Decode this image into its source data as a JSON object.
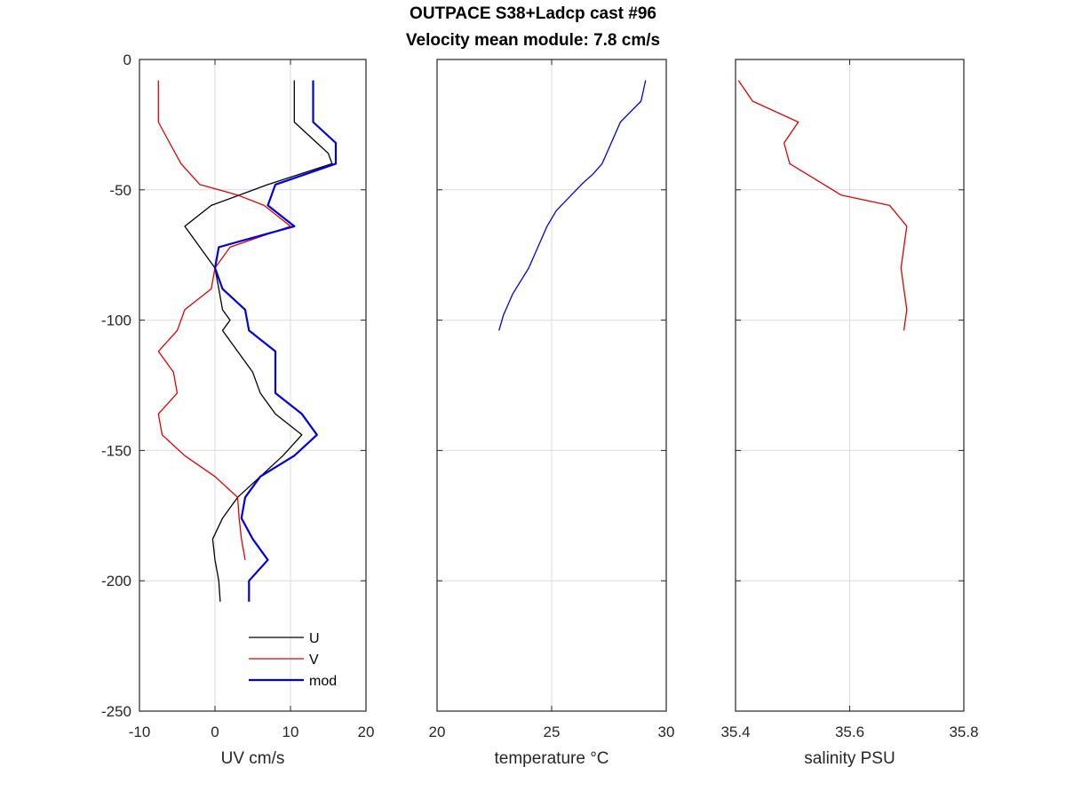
{
  "title": {
    "line1": "OUTPACE S38+Ladcp cast #96",
    "line2": "Velocity mean module:  7.8 cm/s"
  },
  "chart_data": [
    {
      "type": "line",
      "xlabel": "UV cm/s",
      "ylabel": "",
      "xlim": [
        -10,
        20
      ],
      "ylim": [
        -250,
        0
      ],
      "xticks": [
        -10,
        0,
        10,
        20
      ],
      "yticks": [
        -250,
        -200,
        -150,
        -100,
        -50,
        0
      ],
      "grid": true,
      "legend": "bottom-right",
      "series": [
        {
          "name": "U",
          "color": "#000000",
          "points": [
            [
              10.5,
              -8
            ],
            [
              10.5,
              -24
            ],
            [
              13.5,
              -32
            ],
            [
              15,
              -36
            ],
            [
              15.5,
              -40
            ],
            [
              7,
              -48
            ],
            [
              -0.5,
              -56
            ],
            [
              -4,
              -64
            ],
            [
              -2,
              -72
            ],
            [
              0,
              -80
            ],
            [
              0.5,
              -88
            ],
            [
              1,
              -96
            ],
            [
              2,
              -100
            ],
            [
              1,
              -104
            ],
            [
              3,
              -112
            ],
            [
              5,
              -120
            ],
            [
              6,
              -128
            ],
            [
              8,
              -136
            ],
            [
              11.5,
              -144
            ],
            [
              9,
              -152
            ],
            [
              6,
              -160
            ],
            [
              3,
              -168
            ],
            [
              1,
              -176
            ],
            [
              -0.3,
              -184
            ],
            [
              0,
              -192
            ],
            [
              0.5,
              -200
            ],
            [
              0.7,
              -208
            ]
          ]
        },
        {
          "name": "V",
          "color": "#e00000",
          "points": [
            [
              -7.5,
              -8
            ],
            [
              -7.5,
              -24
            ],
            [
              -6,
              -32
            ],
            [
              -4.5,
              -40
            ],
            [
              -2,
              -48
            ],
            [
              3,
              -52
            ],
            [
              6.5,
              -56
            ],
            [
              10,
              -64
            ],
            [
              2,
              -72
            ],
            [
              0,
              -80
            ],
            [
              -0.5,
              -88
            ],
            [
              -4,
              -96
            ],
            [
              -5,
              -104
            ],
            [
              -7.5,
              -112
            ],
            [
              -5.5,
              -120
            ],
            [
              -5,
              -128
            ],
            [
              -7.5,
              -136
            ],
            [
              -7,
              -144
            ],
            [
              -4,
              -152
            ],
            [
              0,
              -160
            ],
            [
              3,
              -168
            ],
            [
              3.2,
              -176
            ],
            [
              3.5,
              -184
            ],
            [
              4,
              -192
            ]
          ]
        },
        {
          "name": "mod",
          "color": "#0000e0",
          "points": [
            [
              13,
              -8
            ],
            [
              13,
              -24
            ],
            [
              16,
              -32
            ],
            [
              16,
              -40
            ],
            [
              8,
              -48
            ],
            [
              7,
              -56
            ],
            [
              10.5,
              -64
            ],
            [
              0.5,
              -72
            ],
            [
              0,
              -80
            ],
            [
              1,
              -88
            ],
            [
              4,
              -96
            ],
            [
              4.5,
              -104
            ],
            [
              8,
              -112
            ],
            [
              8,
              -120
            ],
            [
              8,
              -128
            ],
            [
              11.5,
              -136
            ],
            [
              13.5,
              -144
            ],
            [
              10.5,
              -152
            ],
            [
              6,
              -160
            ],
            [
              4,
              -168
            ],
            [
              3.5,
              -176
            ],
            [
              5,
              -184
            ],
            [
              7,
              -192
            ],
            [
              4.5,
              -200
            ],
            [
              4.5,
              -208
            ]
          ]
        }
      ]
    },
    {
      "type": "line",
      "xlabel": "temperature °C",
      "ylabel": "",
      "xlim": [
        20,
        30
      ],
      "ylim": [
        -250,
        0
      ],
      "xticks": [
        20,
        25,
        30
      ],
      "yticks": [
        -250,
        -200,
        -150,
        -100,
        -50,
        0
      ],
      "grid": true,
      "series": [
        {
          "color": "#0000e0",
          "points": [
            [
              29.1,
              -8
            ],
            [
              28.9,
              -16
            ],
            [
              28.0,
              -24
            ],
            [
              27.6,
              -32
            ],
            [
              27.2,
              -40
            ],
            [
              26.8,
              -44
            ],
            [
              26.3,
              -48
            ],
            [
              25.2,
              -58
            ],
            [
              24.8,
              -64
            ],
            [
              24.4,
              -72
            ],
            [
              24.0,
              -80
            ],
            [
              23.3,
              -90
            ],
            [
              22.9,
              -98
            ],
            [
              22.7,
              -104
            ]
          ]
        }
      ]
    },
    {
      "type": "line",
      "xlabel": "salinity PSU",
      "ylabel": "",
      "xlim": [
        35.4,
        35.8
      ],
      "ylim": [
        -250,
        0
      ],
      "xticks": [
        35.4,
        35.6,
        35.8
      ],
      "yticks": [
        -250,
        -200,
        -150,
        -100,
        -50,
        0
      ],
      "grid": true,
      "series": [
        {
          "color": "#e00000",
          "points": [
            [
              35.405,
              -8
            ],
            [
              35.43,
              -16
            ],
            [
              35.51,
              -24
            ],
            [
              35.485,
              -32
            ],
            [
              35.495,
              -40
            ],
            [
              35.54,
              -46
            ],
            [
              35.585,
              -52
            ],
            [
              35.67,
              -56
            ],
            [
              35.7,
              -64
            ],
            [
              35.695,
              -72
            ],
            [
              35.69,
              -80
            ],
            [
              35.695,
              -88
            ],
            [
              35.7,
              -96
            ],
            [
              35.695,
              -104
            ]
          ]
        }
      ]
    }
  ]
}
